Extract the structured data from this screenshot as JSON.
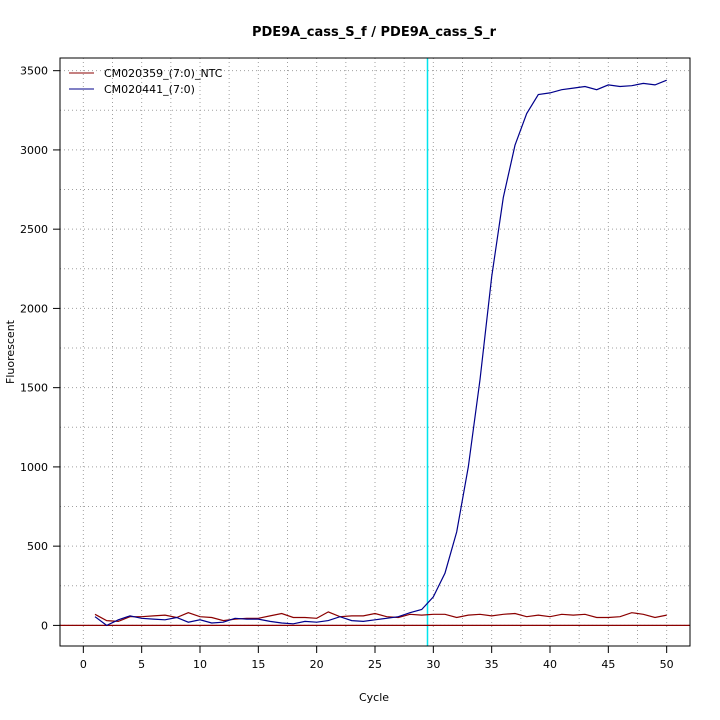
{
  "chart_data": {
    "type": "line",
    "title": "PDE9A_cass_S_f / PDE9A_cass_S_r",
    "xlabel": "Cycle",
    "ylabel": "Fluorescent",
    "xlim": [
      -2,
      52
    ],
    "ylim": [
      -130,
      3580
    ],
    "x_ticks": [
      0,
      5,
      10,
      15,
      20,
      25,
      30,
      35,
      40,
      45,
      50
    ],
    "y_ticks": [
      0,
      500,
      1000,
      1500,
      2000,
      2500,
      3000,
      3500
    ],
    "grid": true,
    "grid_style": "dotted",
    "legend_position": "top-left",
    "threshold_x": 29.5,
    "threshold_color": "#00e5ee",
    "baseline_y": 0,
    "baseline_color": "#8b0000",
    "x": [
      1,
      2,
      3,
      4,
      5,
      6,
      7,
      8,
      9,
      10,
      11,
      12,
      13,
      14,
      15,
      16,
      17,
      18,
      19,
      20,
      21,
      22,
      23,
      24,
      25,
      26,
      27,
      28,
      29,
      30,
      31,
      32,
      33,
      34,
      35,
      36,
      37,
      38,
      39,
      40,
      41,
      42,
      43,
      44,
      45,
      46,
      47,
      48,
      49,
      50
    ],
    "series": [
      {
        "name": "CM020359_(7:0)_NTC",
        "color": "#8b0000",
        "values": [
          70,
          30,
          25,
          55,
          55,
          60,
          65,
          50,
          80,
          55,
          50,
          30,
          40,
          45,
          45,
          60,
          75,
          50,
          50,
          45,
          85,
          55,
          60,
          60,
          75,
          55,
          50,
          70,
          65,
          70,
          70,
          50,
          65,
          70,
          60,
          70,
          75,
          55,
          65,
          55,
          70,
          65,
          70,
          50,
          50,
          55,
          80,
          70,
          50,
          65
        ]
      },
      {
        "name": "CM020441_(7:0)",
        "color": "#00008b",
        "values": [
          55,
          0,
          35,
          60,
          45,
          40,
          35,
          50,
          20,
          35,
          15,
          20,
          45,
          40,
          40,
          25,
          15,
          10,
          25,
          20,
          30,
          55,
          30,
          25,
          35,
          45,
          55,
          80,
          100,
          180,
          330,
          590,
          1000,
          1550,
          2200,
          2700,
          3030,
          3230,
          3350,
          3360,
          3380,
          3390,
          3400,
          3380,
          3410,
          3400,
          3405,
          3420,
          3410,
          3440
        ]
      }
    ]
  }
}
